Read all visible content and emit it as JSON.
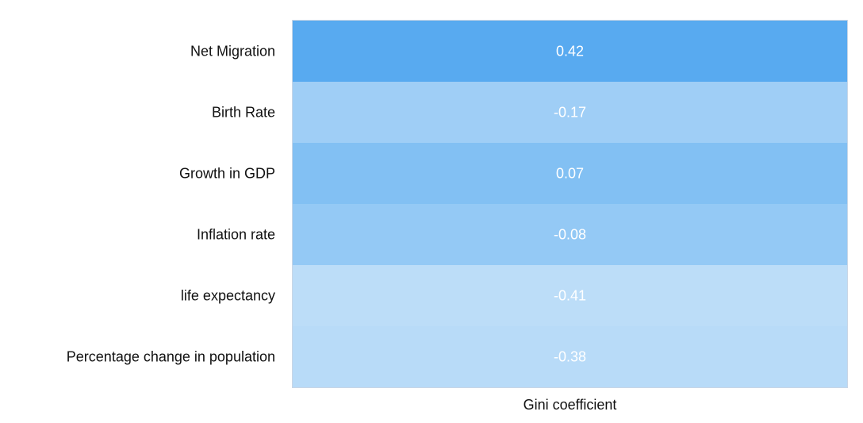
{
  "chart_data": {
    "type": "heatmap",
    "title": "",
    "xlabel": "",
    "ylabel": "",
    "columns": [
      "Gini coefficient"
    ],
    "rows": [
      "Net Migration",
      "Birth Rate",
      "Growth in GDP",
      "Inflation rate",
      "life expectancy",
      "Percentage change in population"
    ],
    "values": [
      [
        0.42
      ],
      [
        -0.17
      ],
      [
        0.07
      ],
      [
        -0.08
      ],
      [
        -0.41
      ],
      [
        -0.38
      ]
    ],
    "value_labels": [
      [
        "0.42"
      ],
      [
        "-0.17"
      ],
      [
        "0.07"
      ],
      [
        "-0.08"
      ],
      [
        "-0.41"
      ],
      [
        "-0.38"
      ]
    ],
    "color_scale": {
      "low_color": "#bcddf8",
      "high_color": "#58aaf0",
      "min": -0.41,
      "max": 0.42
    },
    "label_color": "#ffffff",
    "text_color": "#111111",
    "border_color": "#c8d6e6"
  }
}
